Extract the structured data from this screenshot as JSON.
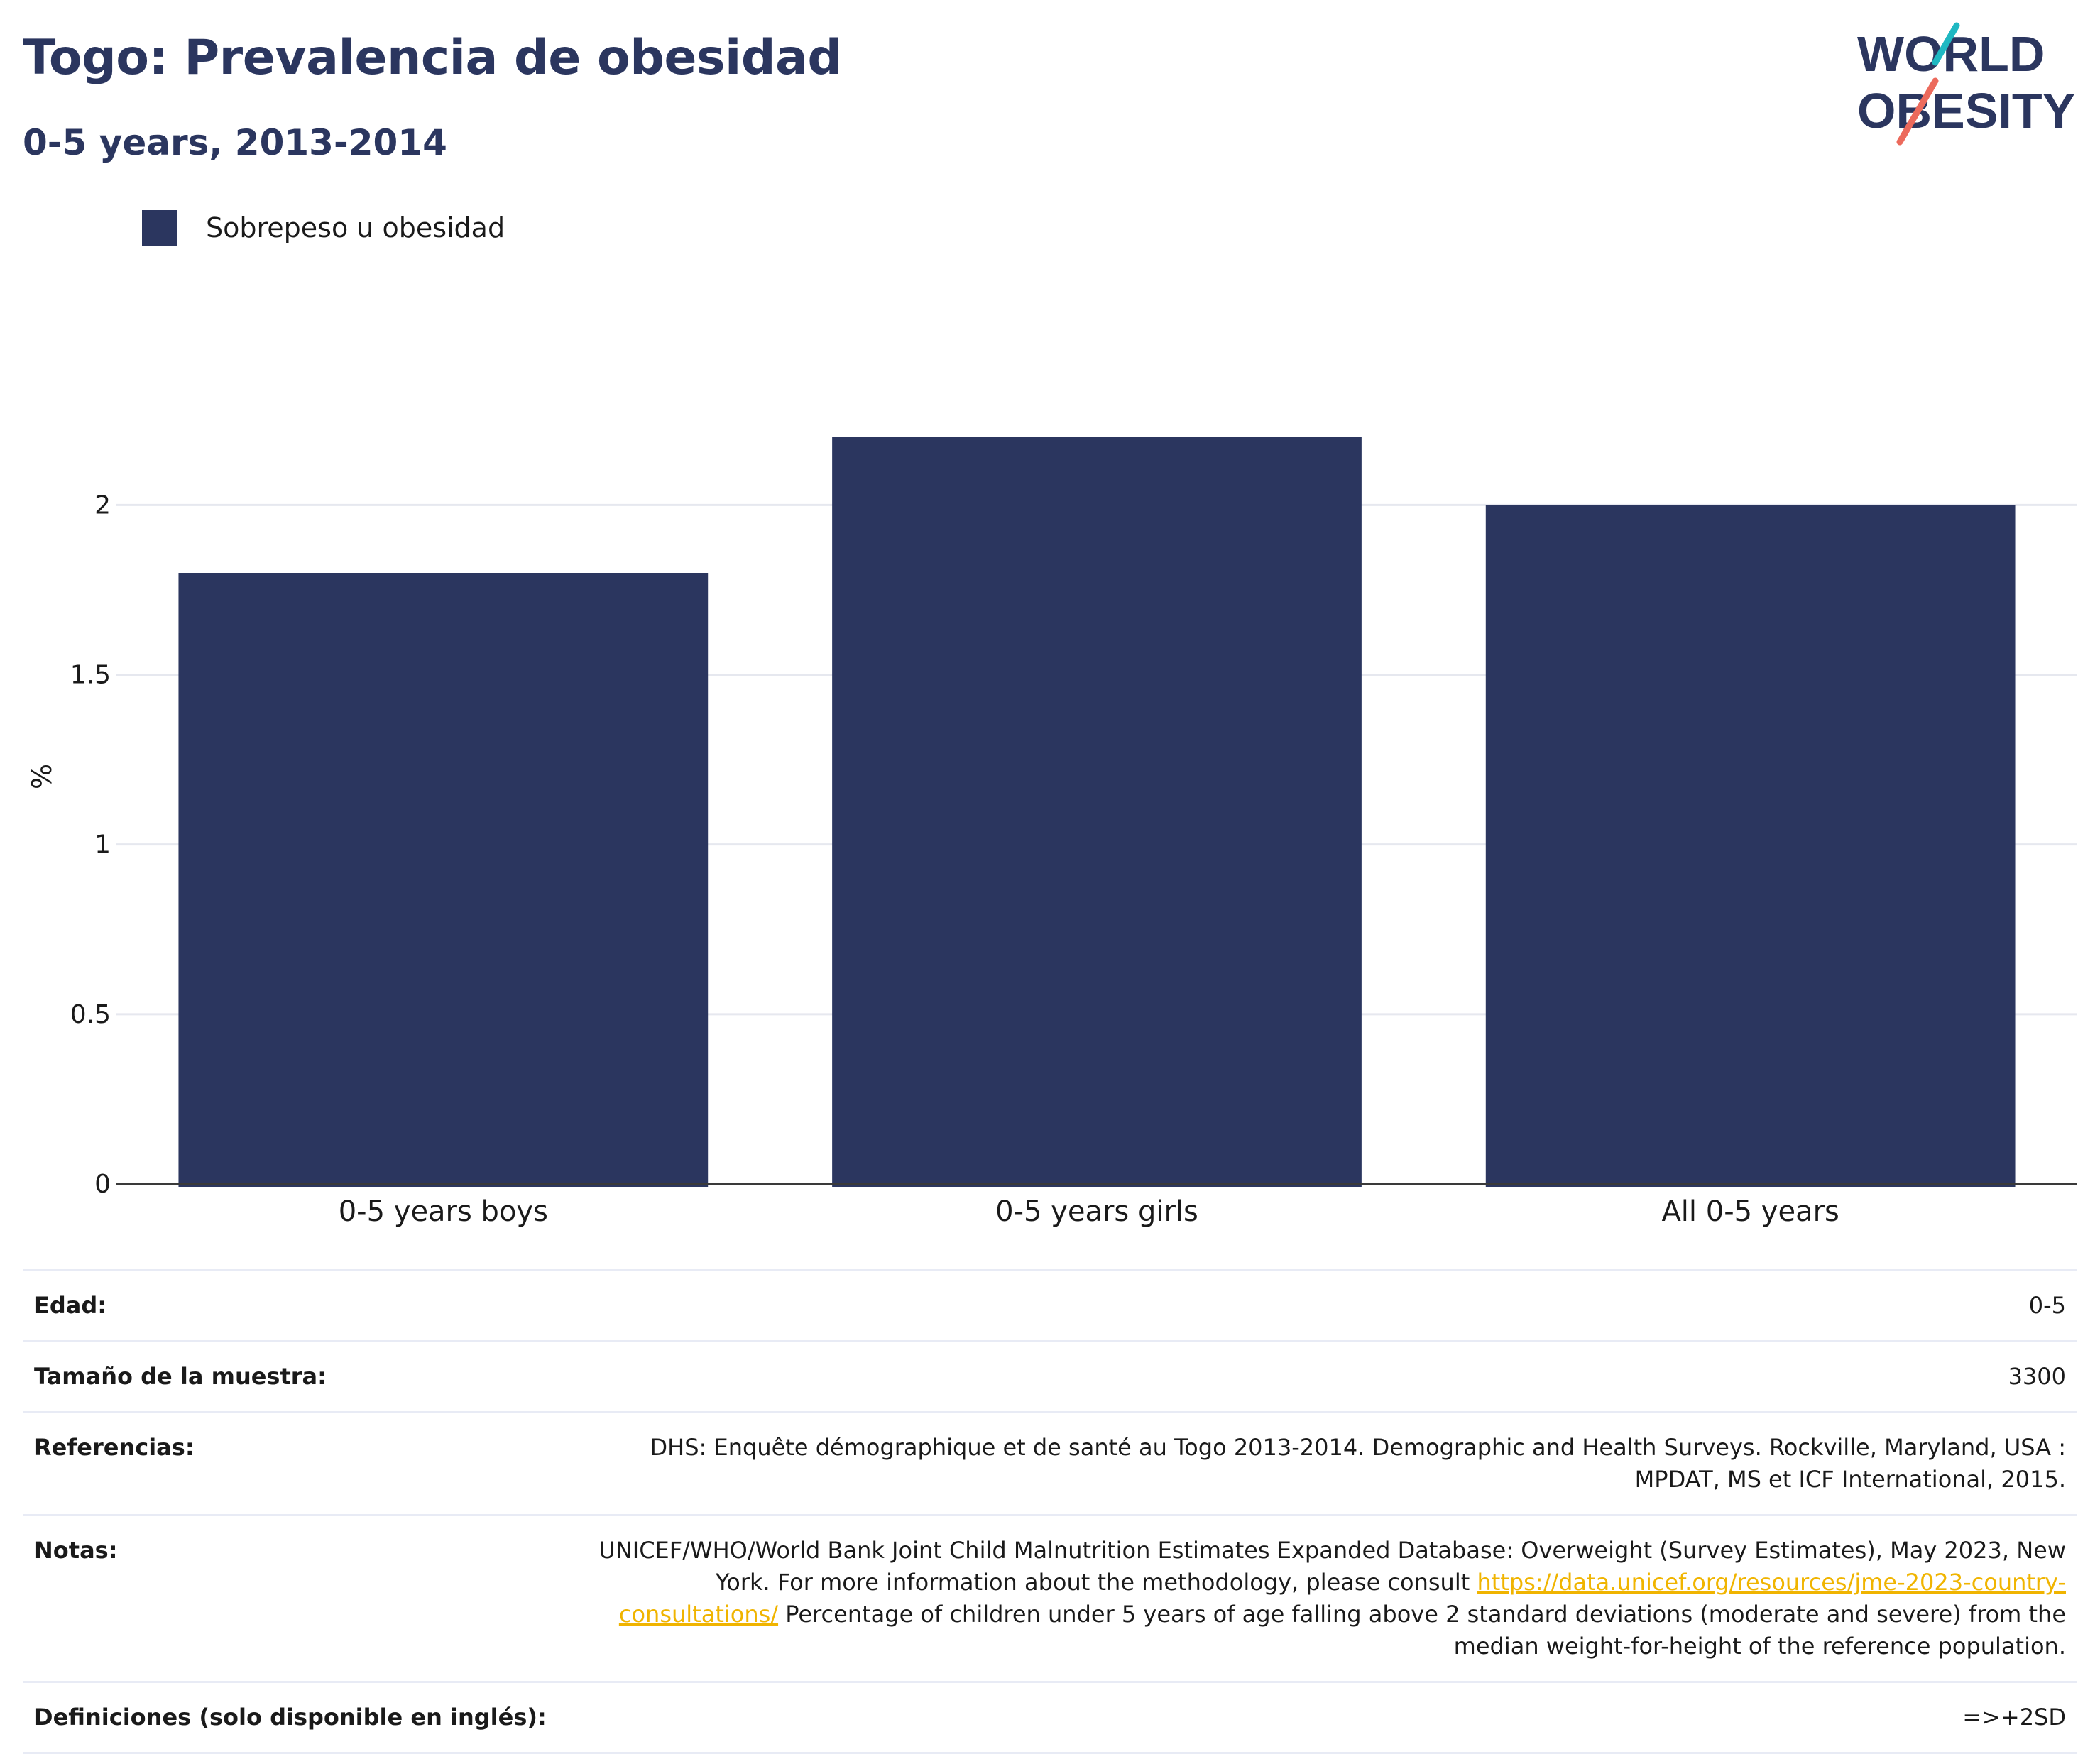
{
  "header": {
    "title": "Togo: Prevalencia de obesidad",
    "subtitle": "0-5 years, 2013-2014"
  },
  "logo": {
    "line1": "WORLD",
    "line2": "OBESITY",
    "colors": {
      "text": "#2b365f",
      "teal": "#1fb8c2",
      "coral": "#ec6a5c"
    }
  },
  "legend": {
    "label": "Sobrepeso u obesidad",
    "color": "#2b365f"
  },
  "chart_data": {
    "type": "bar",
    "categories": [
      "0-5 years boys",
      "0-5 years girls",
      "All 0-5 years"
    ],
    "series": [
      {
        "name": "Sobrepeso u obesidad",
        "values": [
          1.8,
          2.2,
          2.0
        ],
        "color": "#2b365f"
      }
    ],
    "title": "Togo: Prevalencia de obesidad",
    "subtitle": "0-5 years, 2013-2014",
    "xlabel": "",
    "ylabel": "%",
    "ylim": [
      0,
      2.4
    ],
    "yticks": [
      0,
      0.5,
      1,
      1.5,
      2
    ],
    "ytick_labels": [
      "0",
      "0.5",
      "1",
      "1.5",
      "2"
    ],
    "grid": true,
    "legend_position": "top-left"
  },
  "info": {
    "rows": [
      {
        "label": "Edad:",
        "value": "0-5"
      },
      {
        "label": "Tamaño de la muestra:",
        "value": "3300"
      },
      {
        "label": "Referencias:",
        "value": "DHS: Enquête démographique et de santé au Togo 2013-2014. Demographic and Health Surveys. Rockville, Maryland, USA : MPDAT, MS et ICF International, 2015."
      },
      {
        "label": "Notas:",
        "value_before": "UNICEF/WHO/World Bank Joint Child Malnutrition Estimates Expanded Database: Overweight (Survey Estimates), May 2023, New York. For more information about the methodology, please consult ",
        "link": "https://data.unicef.org/resources/jme-2023-country-consultations/",
        "value_after": " Percentage of children under 5 years of age falling above 2 standard deviations (moderate and severe) from the median weight-for-height of the reference population."
      },
      {
        "label": "Definiciones (solo disponible en inglés):",
        "value": "=>+2SD"
      }
    ]
  }
}
